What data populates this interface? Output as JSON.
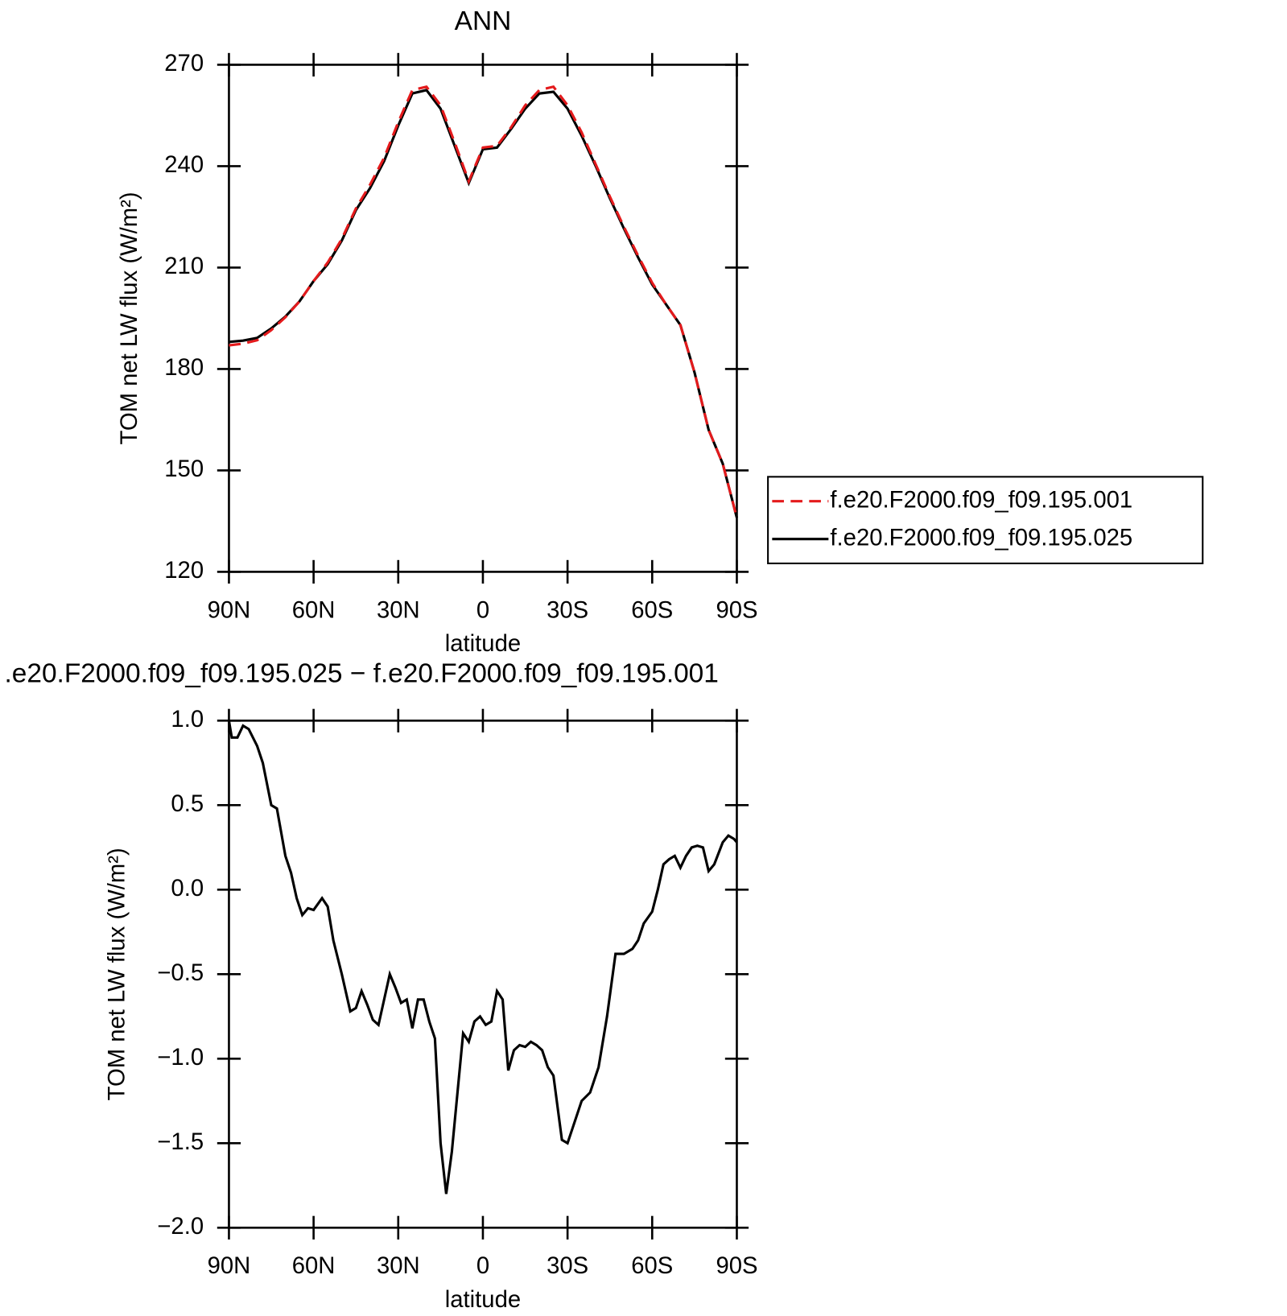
{
  "chart_data": [
    {
      "type": "line",
      "title": "ANN",
      "xlabel": "latitude",
      "ylabel": "TOM net LW flux (W/m²)",
      "x": [
        90,
        85,
        80,
        75,
        70,
        65,
        60,
        55,
        50,
        45,
        40,
        35,
        30,
        25,
        20,
        15,
        10,
        5,
        0,
        -5,
        -10,
        -15,
        -20,
        -25,
        -30,
        -35,
        -40,
        -45,
        -50,
        -55,
        -60,
        -65,
        -70,
        -75,
        -80,
        -85,
        -90
      ],
      "series": [
        {
          "name": "f.e20.F2000.f09_f09.195.001",
          "color": "#e41a1c",
          "dashed": true,
          "values": [
            187,
            187.5,
            188.5,
            191.5,
            195.3,
            200,
            206,
            211.5,
            218.5,
            227.5,
            234.5,
            242.5,
            253,
            262.5,
            263.5,
            258,
            247,
            235.5,
            245.5,
            246,
            251.5,
            258,
            262.5,
            263.5,
            258,
            250,
            240.5,
            231,
            222,
            213.5,
            205.5,
            199,
            193,
            179,
            162,
            152,
            136
          ]
        },
        {
          "name": "f.e20.F2000.f09_f09.195.025",
          "color": "#000000",
          "dashed": false,
          "values": [
            188,
            188.4,
            189.2,
            192,
            195.5,
            200,
            206,
            211,
            218,
            227,
            233.5,
            241.5,
            252,
            261.5,
            262.5,
            257,
            246,
            235,
            245,
            245.5,
            251,
            257,
            261.5,
            262,
            257,
            249,
            240,
            230.5,
            221.5,
            213,
            205,
            199,
            193,
            179,
            162,
            152,
            136
          ]
        }
      ],
      "xlim": [
        90,
        -90
      ],
      "ylim": [
        120,
        270
      ],
      "xticks": [
        {
          "value": 90,
          "label": "90N"
        },
        {
          "value": 60,
          "label": "60N"
        },
        {
          "value": 30,
          "label": "30N"
        },
        0,
        {
          "value": -30,
          "label": "30S"
        },
        {
          "value": -60,
          "label": "60S"
        },
        {
          "value": -90,
          "label": "90S"
        }
      ],
      "yticks": [
        120,
        150,
        180,
        210,
        240,
        270
      ],
      "legend": "right"
    },
    {
      "type": "line",
      "title": ".e20.F2000.f09_f09.195.025 − f.e20.F2000.f09_f09.195.001",
      "xlabel": "latitude",
      "ylabel": "TOM net LW flux (W/m²)",
      "x": [
        90,
        89,
        87,
        85,
        83,
        80,
        78,
        75,
        73,
        70,
        68,
        66,
        64,
        62,
        60,
        57,
        55,
        53,
        50,
        47,
        45,
        43,
        41,
        39,
        37,
        35,
        33,
        31,
        29,
        27,
        25,
        23,
        21,
        19,
        17,
        15,
        13,
        11,
        9,
        7,
        5,
        3,
        1,
        -1,
        -3,
        -5,
        -7,
        -9,
        -11,
        -13,
        -15,
        -17,
        -19,
        -21,
        -23,
        -25,
        -28,
        -30,
        -32,
        -35,
        -38,
        -41,
        -44,
        -47,
        -50,
        -53,
        -55,
        -57,
        -60,
        -62,
        -64,
        -66,
        -68,
        -70,
        -72,
        -74,
        -76,
        -78,
        -80,
        -82,
        -85,
        -87,
        -89,
        -90
      ],
      "values": [
        1.0,
        0.9,
        0.9,
        0.97,
        0.95,
        0.85,
        0.75,
        0.5,
        0.48,
        0.2,
        0.1,
        -0.05,
        -0.15,
        -0.11,
        -0.12,
        -0.05,
        -0.1,
        -0.3,
        -0.5,
        -0.72,
        -0.7,
        -0.6,
        -0.68,
        -0.77,
        -0.8,
        -0.65,
        -0.5,
        -0.58,
        -0.67,
        -0.65,
        -0.82,
        -0.65,
        -0.65,
        -0.78,
        -0.88,
        -1.5,
        -1.8,
        -1.55,
        -1.2,
        -0.85,
        -0.9,
        -0.78,
        -0.75,
        -0.8,
        -0.78,
        -0.6,
        -0.65,
        -1.07,
        -0.95,
        -0.92,
        -0.93,
        -0.9,
        -0.92,
        -0.95,
        -1.05,
        -1.1,
        -1.48,
        -1.5,
        -1.4,
        -1.25,
        -1.2,
        -1.05,
        -0.75,
        -0.38,
        -0.38,
        -0.35,
        -0.3,
        -0.2,
        -0.13,
        0.0,
        0.15,
        0.18,
        0.2,
        0.13,
        0.2,
        0.25,
        0.26,
        0.25,
        0.11,
        0.15,
        0.28,
        0.32,
        0.3,
        0.28
      ],
      "color": "#000000",
      "xlim": [
        90,
        -90
      ],
      "ylim": [
        -2,
        1
      ],
      "xticks": [
        {
          "value": 90,
          "label": "90N"
        },
        {
          "value": 60,
          "label": "60N"
        },
        {
          "value": 30,
          "label": "30N"
        },
        0,
        {
          "value": -30,
          "label": "30S"
        },
        {
          "value": -60,
          "label": "60S"
        },
        {
          "value": -90,
          "label": "90S"
        }
      ],
      "yticks": [
        {
          "value": -2,
          "label": "−2.0"
        },
        {
          "value": -1.5,
          "label": "−1.5"
        },
        {
          "value": -1,
          "label": "−1.0"
        },
        {
          "value": -0.5,
          "label": "−0.5"
        },
        {
          "value": 0,
          "label": "0.0"
        },
        {
          "value": 0.5,
          "label": "0.5"
        },
        {
          "value": 1,
          "label": "1.0"
        }
      ]
    }
  ]
}
